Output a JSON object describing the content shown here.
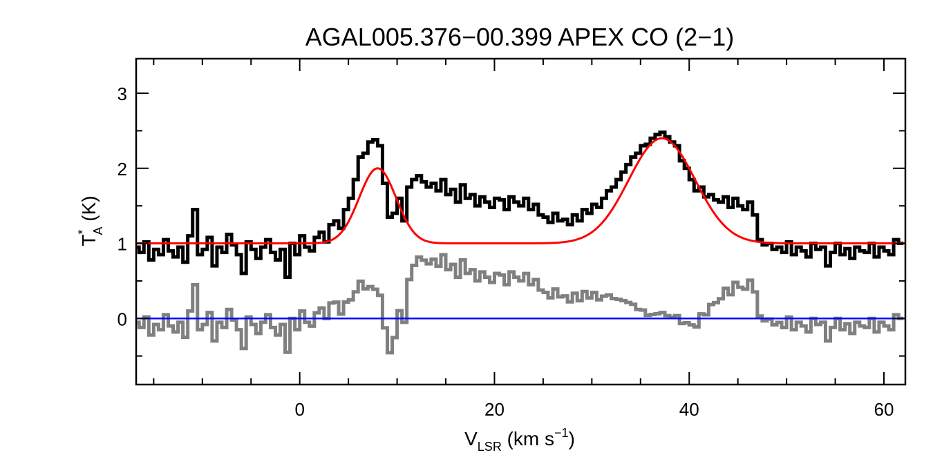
{
  "chart_data": {
    "type": "line",
    "title": "AGAL005.376−00.399  APEX CO (2−1)",
    "xlabel": {
      "main": "V",
      "sub": "LSR",
      "unit_pre": " (km s",
      "sup": "−1",
      "unit_post": ")"
    },
    "ylabel": {
      "main": "T",
      "sup": "*",
      "sub": "A",
      "unit": " (K)"
    },
    "xlim": [
      -16.8,
      62.2
    ],
    "ylim": [
      -0.88,
      3.46
    ],
    "x_ticks": [
      0,
      20,
      40,
      60
    ],
    "x_tick_labels": [
      "0",
      "20",
      "40",
      "60"
    ],
    "y_ticks": [
      0,
      1,
      2,
      3
    ],
    "y_tick_labels": [
      "0",
      "1",
      "2",
      "3"
    ],
    "grid": false,
    "spectrum": {
      "color": "#000000",
      "x_start": -16.75,
      "x_step": 0.5,
      "values": [
        0.95,
        0.88,
        1.02,
        0.78,
        0.92,
        0.85,
        1.05,
        0.9,
        0.82,
        0.95,
        0.75,
        1.1,
        1.45,
        0.85,
        0.92,
        1.08,
        0.7,
        0.95,
        0.88,
        1.12,
        0.98,
        0.85,
        0.6,
        1.02,
        0.92,
        0.8,
        0.95,
        1.05,
        0.88,
        0.78,
        0.92,
        0.55,
        1.0,
        0.85,
        1.1,
        0.95,
        0.9,
        1.08,
        1.15,
        1.02,
        1.25,
        1.3,
        1.2,
        1.45,
        1.6,
        1.85,
        2.15,
        2.2,
        2.35,
        2.38,
        2.3,
        1.8,
        1.35,
        1.4,
        1.6,
        1.3,
        1.75,
        1.85,
        1.9,
        1.82,
        1.75,
        1.8,
        1.7,
        1.85,
        1.65,
        1.72,
        1.55,
        1.78,
        1.6,
        1.65,
        1.5,
        1.62,
        1.55,
        1.48,
        1.6,
        1.58,
        1.45,
        1.62,
        1.55,
        1.5,
        1.6,
        1.45,
        1.52,
        1.38,
        1.35,
        1.28,
        1.4,
        1.3,
        1.32,
        1.25,
        1.38,
        1.3,
        1.45,
        1.4,
        1.52,
        1.48,
        1.6,
        1.7,
        1.75,
        1.85,
        1.95,
        2.05,
        2.15,
        2.2,
        2.3,
        2.32,
        2.4,
        2.45,
        2.48,
        2.42,
        2.35,
        2.3,
        2.1,
        2.0,
        1.85,
        1.7,
        1.75,
        1.62,
        1.65,
        1.58,
        1.55,
        1.62,
        1.48,
        1.6,
        1.5,
        1.45,
        1.55,
        1.38,
        1.05,
        0.98,
        1.0,
        0.92,
        0.95,
        0.88,
        1.02,
        0.85,
        0.95,
        0.9,
        0.82,
        1.0,
        0.92,
        0.95,
        0.7,
        0.88,
        1.0,
        0.85,
        0.93,
        0.8,
        0.95,
        0.9,
        0.88,
        1.0,
        0.82,
        0.95,
        0.9,
        0.85,
        1.05,
        1.0
      ]
    },
    "fit": {
      "color": "#ff0000",
      "baseline": 1.0,
      "components": [
        {
          "center": 8.0,
          "amplitude": 1.0,
          "sigma": 1.9
        },
        {
          "center": 37.2,
          "amplitude": 1.4,
          "sigma": 3.4
        }
      ]
    },
    "residual": {
      "color": "#808080",
      "note_source": "spectrum minus fit"
    },
    "zero_line": {
      "color": "#0000ff",
      "value": 0
    }
  }
}
